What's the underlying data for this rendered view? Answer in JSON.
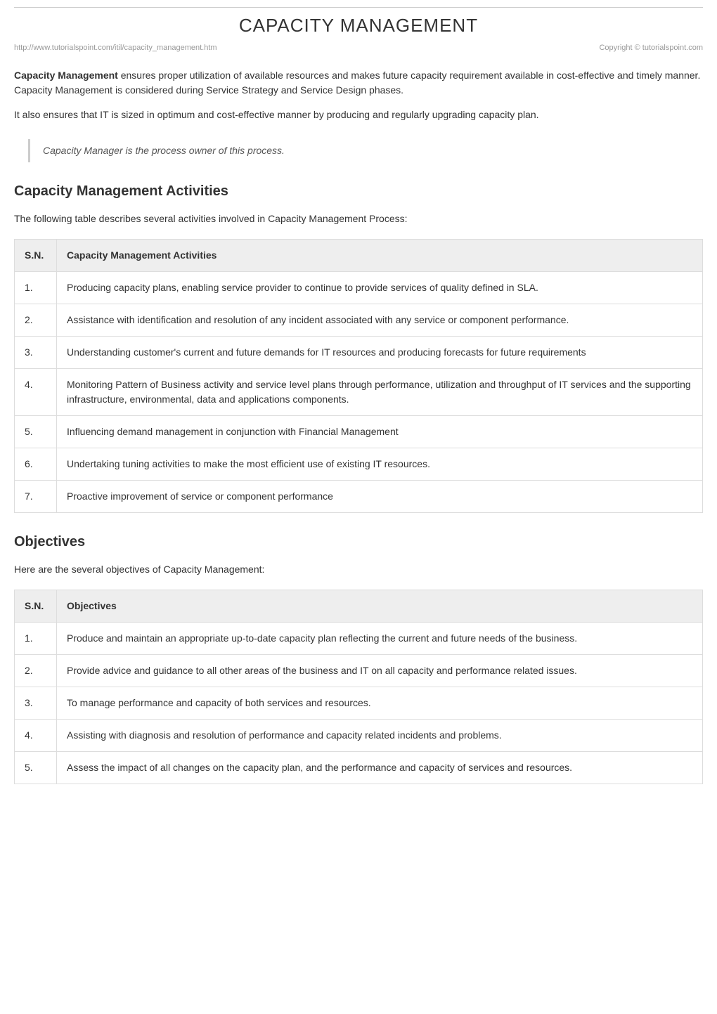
{
  "page": {
    "title": "CAPACITY MANAGEMENT",
    "url": "http://www.tutorialspoint.com/itil/capacity_management.htm",
    "copyright": "Copyright © tutorialspoint.com"
  },
  "intro": {
    "boldLead": "Capacity Management",
    "para1_rest": " ensures proper utilization of available resources and makes future capacity requirement available in cost-effective and timely manner. Capacity Management is considered during Service Strategy and Service Design phases.",
    "para2": "It also ensures that IT is sized in optimum and cost-effective manner by producing and regularly upgrading capacity plan.",
    "quote": "Capacity Manager is the process owner of this process."
  },
  "activities": {
    "heading": "Capacity Management Activities",
    "lead": "The following table describes several activities involved in Capacity Management Process:",
    "table": {
      "col_sn": "S.N.",
      "col_desc": "Capacity Management Activities",
      "rows": [
        {
          "n": "1.",
          "text": "Producing capacity plans, enabling service provider to continue to provide services of quality defined in SLA."
        },
        {
          "n": "2.",
          "text": "Assistance with identification and resolution of any incident associated with any service or component performance."
        },
        {
          "n": "3.",
          "text": "Understanding customer's current and future demands for IT resources and producing forecasts for future requirements"
        },
        {
          "n": "4.",
          "text": "Monitoring Pattern of Business activity and service level plans through performance, utilization and throughput of IT services and the supporting infrastructure, environmental, data and applications components."
        },
        {
          "n": "5.",
          "text": "Influencing demand management in conjunction with Financial Management"
        },
        {
          "n": "6.",
          "text": "Undertaking tuning activities to make the most efficient use of existing IT resources."
        },
        {
          "n": "7.",
          "text": "Proactive improvement of service or component performance"
        }
      ]
    }
  },
  "objectives": {
    "heading": "Objectives",
    "lead": "Here are the several objectives of Capacity Management:",
    "table": {
      "col_sn": "S.N.",
      "col_desc": "Objectives",
      "rows": [
        {
          "n": "1.",
          "text": "Produce and maintain an appropriate up-to-date capacity plan reflecting the current and future needs of the business."
        },
        {
          "n": "2.",
          "text": "Provide advice and guidance to all other areas of the business and IT on all capacity and performance related issues."
        },
        {
          "n": "3.",
          "text": "To manage performance and capacity of both services and resources."
        },
        {
          "n": "4.",
          "text": "Assisting with diagnosis and resolution of performance and capacity related incidents and problems."
        },
        {
          "n": "5.",
          "text": "Assess the impact of all changes on the capacity plan, and the performance and capacity of services and resources."
        }
      ]
    }
  }
}
